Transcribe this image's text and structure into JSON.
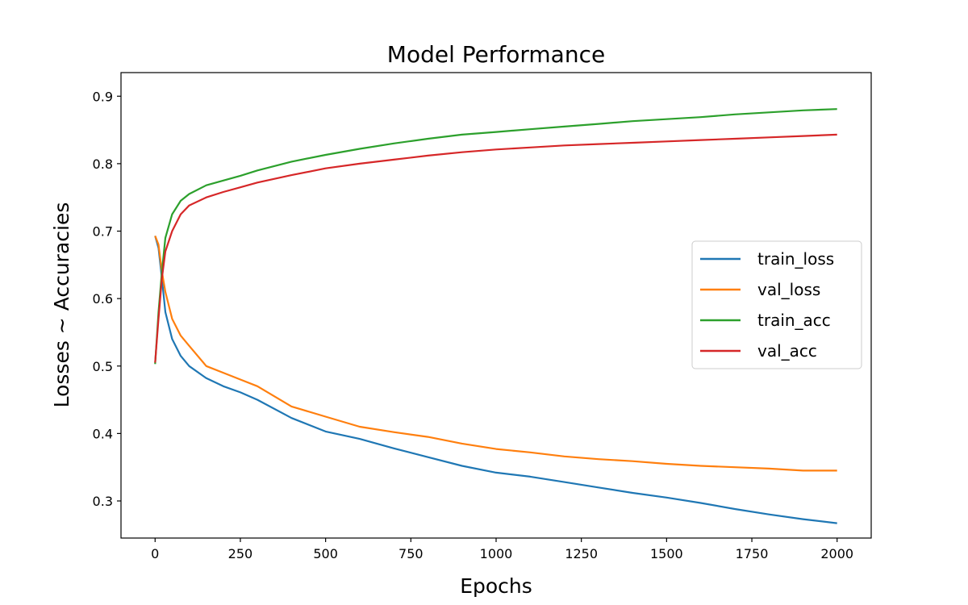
{
  "chart_data": {
    "type": "line",
    "title": "Model Performance",
    "xlabel": "Epochs",
    "ylabel": "Losses ~ Accuracies",
    "xlim": [
      -100,
      2100
    ],
    "ylim": [
      0.245,
      0.935
    ],
    "xticks": [
      0,
      250,
      500,
      750,
      1000,
      1250,
      1500,
      1750,
      2000
    ],
    "xtick_labels": [
      "0",
      "250",
      "500",
      "750",
      "1000",
      "1250",
      "1500",
      "1750",
      "2000"
    ],
    "yticks": [
      0.3,
      0.4,
      0.5,
      0.6,
      0.7,
      0.8,
      0.9
    ],
    "ytick_labels": [
      "0.3",
      "0.4",
      "0.5",
      "0.6",
      "0.7",
      "0.8",
      "0.9"
    ],
    "legend_position": "center-right",
    "grid": false,
    "series": [
      {
        "name": "train_loss",
        "color": "#1f77b4",
        "x": [
          0,
          10,
          20,
          30,
          50,
          75,
          100,
          150,
          200,
          250,
          300,
          400,
          500,
          600,
          700,
          800,
          900,
          1000,
          1100,
          1200,
          1300,
          1400,
          1500,
          1600,
          1700,
          1800,
          1900,
          2000
        ],
        "values": [
          0.693,
          0.675,
          0.63,
          0.58,
          0.54,
          0.515,
          0.5,
          0.482,
          0.47,
          0.461,
          0.45,
          0.423,
          0.403,
          0.392,
          0.378,
          0.365,
          0.352,
          0.342,
          0.336,
          0.328,
          0.32,
          0.312,
          0.305,
          0.297,
          0.288,
          0.28,
          0.273,
          0.267
        ]
      },
      {
        "name": "val_loss",
        "color": "#ff7f0e",
        "x": [
          0,
          10,
          20,
          30,
          50,
          75,
          100,
          150,
          200,
          250,
          300,
          400,
          500,
          600,
          700,
          800,
          900,
          1000,
          1100,
          1200,
          1300,
          1400,
          1500,
          1600,
          1700,
          1800,
          1900,
          2000
        ],
        "values": [
          0.693,
          0.68,
          0.64,
          0.61,
          0.57,
          0.545,
          0.53,
          0.5,
          0.49,
          0.48,
          0.47,
          0.44,
          0.425,
          0.41,
          0.402,
          0.395,
          0.385,
          0.377,
          0.372,
          0.366,
          0.362,
          0.359,
          0.355,
          0.352,
          0.35,
          0.348,
          0.345,
          0.345
        ]
      },
      {
        "name": "train_acc",
        "color": "#2ca02c",
        "x": [
          0,
          10,
          20,
          30,
          50,
          75,
          100,
          150,
          200,
          250,
          300,
          400,
          500,
          600,
          700,
          800,
          900,
          1000,
          1100,
          1200,
          1300,
          1400,
          1500,
          1600,
          1700,
          1800,
          1900,
          2000
        ],
        "values": [
          0.503,
          0.58,
          0.64,
          0.69,
          0.725,
          0.745,
          0.755,
          0.768,
          0.775,
          0.782,
          0.79,
          0.803,
          0.813,
          0.822,
          0.83,
          0.837,
          0.843,
          0.847,
          0.851,
          0.855,
          0.859,
          0.863,
          0.866,
          0.869,
          0.873,
          0.876,
          0.879,
          0.881
        ]
      },
      {
        "name": "val_acc",
        "color": "#d62728",
        "x": [
          0,
          10,
          20,
          30,
          50,
          75,
          100,
          150,
          200,
          250,
          300,
          400,
          500,
          600,
          700,
          800,
          900,
          1000,
          1100,
          1200,
          1300,
          1400,
          1500,
          1600,
          1700,
          1800,
          1900,
          2000
        ],
        "values": [
          0.505,
          0.57,
          0.63,
          0.67,
          0.7,
          0.725,
          0.738,
          0.75,
          0.758,
          0.765,
          0.772,
          0.783,
          0.793,
          0.8,
          0.806,
          0.812,
          0.817,
          0.821,
          0.824,
          0.827,
          0.829,
          0.831,
          0.833,
          0.835,
          0.837,
          0.839,
          0.841,
          0.843
        ]
      }
    ]
  }
}
